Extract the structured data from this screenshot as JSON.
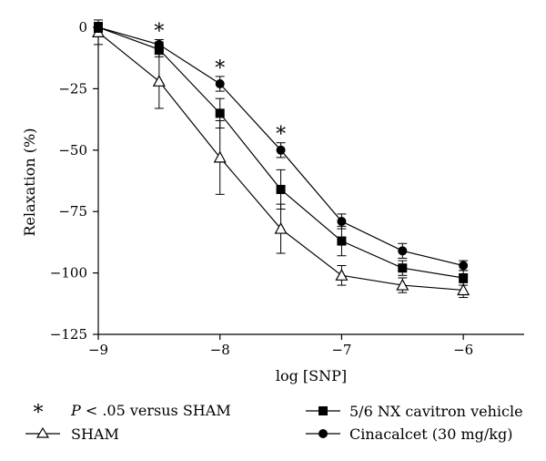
{
  "chart_data": {
    "type": "line",
    "title": "",
    "xlabel": "log [SNP]",
    "ylabel": "Relaxation (%)",
    "xlim": [
      -9,
      -5.5
    ],
    "ylim": [
      -125,
      0
    ],
    "xticks": [
      -9,
      -8,
      -7,
      -6
    ],
    "yticks": [
      0,
      -25,
      -50,
      -75,
      -100,
      -125
    ],
    "xtick_labels": [
      "−9",
      "−8",
      "−7",
      "−6"
    ],
    "ytick_labels": [
      "0",
      "−25",
      "−50",
      "−75",
      "−100",
      "−125"
    ],
    "x": [
      -9,
      -8.5,
      -8,
      -7.5,
      -7,
      -6.5,
      -6
    ],
    "series": [
      {
        "name": "SHAM",
        "marker": "open-triangle",
        "values": [
          -2,
          -22,
          -53,
          -82,
          -101,
          -105,
          -107
        ],
        "errors": [
          5,
          11,
          15,
          10,
          4,
          3,
          3
        ]
      },
      {
        "name": "5/6 NX cavitron vehicle",
        "marker": "filled-square",
        "values": [
          0,
          -9,
          -35,
          -66,
          -87,
          -98,
          -102
        ],
        "errors": [
          2,
          3,
          6,
          8,
          6,
          3,
          3
        ]
      },
      {
        "name": "Cinacalcet (30 mg/kg)",
        "marker": "filled-circle",
        "values": [
          0,
          -7,
          -23,
          -50,
          -79,
          -91,
          -97
        ],
        "errors": [
          2,
          2,
          3,
          3,
          3,
          3,
          2
        ]
      }
    ],
    "significance": {
      "symbol": "*",
      "x": [
        -8.5,
        -8,
        -7.5
      ],
      "legend_label": "P < .05 versus SHAM",
      "legend_label_italic": "P",
      "legend_label_rest": " < .05 versus SHAM"
    },
    "legend": {
      "placement": "bottom",
      "columns": 2
    }
  }
}
